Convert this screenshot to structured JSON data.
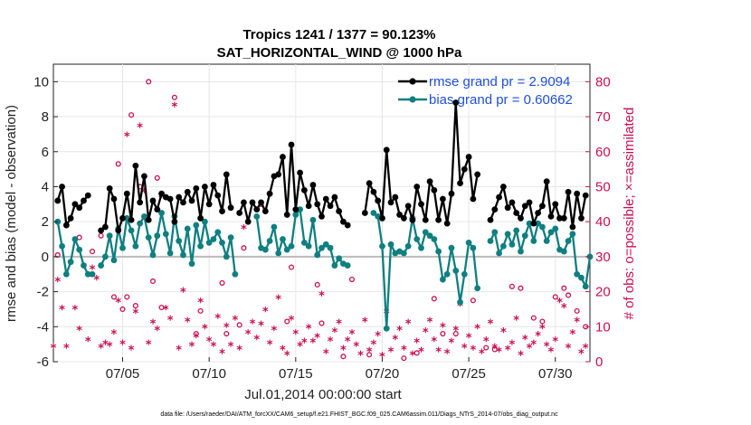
{
  "chart_data": {
    "type": "line",
    "title": "Tropics 1241 / 1377 = 90.123%",
    "subtitle": "SAT_HORIZONTAL_WIND @ 1000 hPa",
    "xlabel": "Jul.01,2014 00:00:00 start",
    "ylabel": "rmse and bias (model - observation)",
    "ylabel_right": "# of obs: o=possible; ×=assimilated",
    "footnote": "data file: /Users/raeder/DAI/ATM_forcXX/CAM6_setup/f.e21.FHIST_BGC.f09_025.CAM6assim.011/Diags_NTrS_2014-07/obs_diag_output.nc",
    "xlim": [
      1,
      32
    ],
    "ylim": [
      -6,
      11
    ],
    "ylim_right": [
      0,
      85
    ],
    "x_ticks": [
      5,
      10,
      15,
      20,
      25,
      30
    ],
    "x_tick_labels": [
      "07/05",
      "07/10",
      "07/15",
      "07/20",
      "07/25",
      "07/30"
    ],
    "y_ticks": [
      -6,
      -4,
      -2,
      0,
      2,
      4,
      6,
      8,
      10
    ],
    "y_tick_labels": [
      "-6",
      "-4",
      "-2",
      "0",
      "2",
      "4",
      "6",
      "8",
      "10"
    ],
    "y_right_ticks": [
      0,
      10,
      20,
      30,
      40,
      50,
      60,
      70,
      80
    ],
    "y_right_tick_labels": [
      "0",
      "10",
      "20",
      "30",
      "40",
      "50",
      "60",
      "70",
      "80"
    ],
    "legend": [
      {
        "label": "rmse grand pr = 2.9094",
        "color": "#000000"
      },
      {
        "label": "bias grand pr = 0.60662",
        "color": "#0f7f80"
      }
    ],
    "colors": {
      "rmse": "#000000",
      "bias": "#0f7f80",
      "counts": "#c8104f",
      "zero_line": "#bbbbbb"
    },
    "series": [
      {
        "name": "rmse",
        "segments": [
          {
            "x": [
              1.25,
              1.5,
              1.75,
              2.0,
              2.25,
              2.5,
              2.75,
              3.0
            ],
            "y": [
              3.2,
              4.0,
              1.8,
              2.2,
              3.0,
              2.8,
              3.2,
              3.5
            ]
          },
          {
            "x": [
              3.75,
              4.0,
              4.25,
              4.5,
              4.75,
              5.0,
              5.25,
              5.5,
              5.75,
              6.0,
              6.25,
              6.5,
              6.75,
              7.0,
              7.25,
              7.5,
              7.75,
              8.0,
              8.25,
              8.5,
              8.75,
              9.0,
              9.25,
              9.5,
              9.75,
              10.0,
              10.25,
              10.5,
              10.75,
              11.0,
              11.25
            ],
            "y": [
              1.5,
              1.7,
              3.9,
              3.3,
              1.5,
              2.2,
              3.6,
              2.1,
              5.2,
              3.1,
              4.6,
              2.1,
              3.2,
              2.7,
              3.6,
              3.4,
              3.3,
              2.0,
              3.4,
              3.1,
              3.7,
              3.2,
              3.9,
              2.2,
              4.0,
              3.0,
              4.1,
              3.5,
              2.6,
              4.7,
              2.8
            ]
          },
          {
            "x": [
              11.75,
              12.0,
              12.25,
              12.5,
              12.75,
              13.0,
              13.25,
              13.5,
              13.75,
              14.0,
              14.25,
              14.5,
              14.75,
              15.0,
              15.25,
              15.5,
              15.75,
              16.0,
              16.25,
              16.5,
              16.75,
              17.0,
              17.25,
              17.5,
              17.75,
              18.0
            ],
            "y": [
              2.5,
              3.1,
              2.0,
              3.1,
              2.7,
              3.1,
              2.6,
              3.6,
              4.6,
              4.7,
              5.7,
              2.4,
              6.4,
              2.7,
              4.8,
              3.8,
              2.9,
              4.1,
              3.0,
              2.3,
              3.3,
              2.9,
              3.4,
              2.6,
              2.0,
              1.8
            ]
          },
          {
            "x": [
              19.0,
              19.25,
              19.5,
              19.75,
              20.0,
              20.25,
              20.5,
              20.75,
              21.0,
              21.25,
              21.5,
              21.75,
              22.0,
              22.25,
              22.5,
              22.75,
              23.0,
              23.25,
              23.5,
              23.75,
              24.0,
              24.25,
              24.5,
              24.75,
              25.0,
              25.25,
              25.5
            ],
            "y": [
              2.5,
              4.2,
              3.7,
              3.2,
              2.2,
              6.1,
              3.1,
              3.4,
              2.4,
              2.2,
              2.9,
              2.1,
              4.0,
              3.0,
              2.1,
              4.3,
              3.8,
              2.1,
              3.3,
              1.9,
              3.6,
              8.8,
              4.2,
              5.0,
              5.7,
              3.3,
              4.7
            ]
          },
          {
            "x": [
              26.25,
              26.5,
              26.75,
              27.0,
              27.25,
              27.5,
              27.75,
              28.0,
              28.25,
              28.5,
              28.75,
              29.0,
              29.25,
              29.5,
              29.75,
              30.0,
              30.25,
              30.5,
              30.75,
              31.0,
              31.25,
              31.5,
              31.75
            ],
            "y": [
              2.1,
              2.7,
              3.4,
              4.0,
              2.8,
              3.1,
              2.5,
              2.2,
              2.9,
              3.1,
              1.9,
              2.5,
              2.9,
              4.3,
              2.3,
              3.0,
              2.2,
              2.2,
              3.7,
              1.7,
              3.6,
              2.2,
              3.5
            ]
          }
        ]
      },
      {
        "name": "bias",
        "segments": [
          {
            "x": [
              1.25,
              1.5,
              1.75,
              2.0,
              2.25,
              2.5,
              2.75,
              3.0,
              3.25
            ],
            "y": [
              2.0,
              0.6,
              -1.0,
              -0.3,
              1.0,
              0.4,
              -0.5,
              -1.0,
              -1.0
            ]
          },
          {
            "x": [
              3.75,
              4.0,
              4.25,
              4.5,
              4.75,
              5.0,
              5.25,
              5.5,
              5.75,
              6.0,
              6.25,
              6.5,
              6.75,
              7.0,
              7.25,
              7.5,
              7.75,
              8.0,
              8.25,
              8.5,
              8.75,
              9.0,
              9.25,
              9.5,
              9.75,
              10.0,
              10.25,
              10.5,
              10.75,
              11.0,
              11.25,
              11.5
            ],
            "y": [
              -0.5,
              0.0,
              1.2,
              -0.2,
              1.6,
              0.5,
              2.2,
              1.5,
              0.6,
              1.9,
              2.3,
              1.1,
              0.1,
              1.2,
              2.5,
              1.3,
              0.2,
              2.3,
              0.9,
              0.1,
              1.6,
              -0.4,
              1.8,
              0.6,
              2.0,
              0.8,
              1.0,
              1.4,
              0.8,
              0.0,
              1.1,
              -1.0
            ]
          },
          {
            "x": [
              12.75,
              13.0,
              13.25,
              13.5,
              13.75,
              14.0,
              14.25,
              14.5,
              14.75,
              15.0,
              15.25,
              15.5,
              15.75,
              16.0,
              16.25,
              16.5,
              16.75,
              17.0,
              17.25,
              17.5,
              17.75,
              18.0
            ],
            "y": [
              2.3,
              0.5,
              0.4,
              0.9,
              1.7,
              0.2,
              1.0,
              0.4,
              0.6,
              2.4,
              2.7,
              0.8,
              0.6,
              2.1,
              0.1,
              0.5,
              0.7,
              0.5,
              -0.5,
              -0.1,
              -0.4,
              -0.5
            ]
          },
          {
            "x": [
              19.5,
              19.75,
              20.0,
              20.25,
              20.5,
              20.75,
              21.0,
              21.25,
              21.5,
              21.75,
              22.0,
              22.25,
              22.5,
              22.75,
              23.0,
              23.25,
              23.5,
              23.75,
              24.0,
              24.25,
              24.5,
              24.75,
              25.0,
              25.25,
              25.5
            ],
            "y": [
              2.5,
              2.3,
              0.6,
              -4.1,
              0.7,
              0.2,
              0.3,
              0.2,
              0.6,
              2.2,
              1.0,
              0.5,
              1.4,
              1.2,
              1.0,
              0.3,
              -1.3,
              -1.0,
              0.5,
              -0.8,
              -2.6,
              -1.0,
              0.8,
              0.5,
              -1.8
            ]
          },
          {
            "x": [
              26.25,
              26.5,
              26.75,
              27.0,
              27.25,
              27.5,
              27.75,
              28.0,
              28.25,
              28.5,
              28.75,
              29.0,
              29.25,
              29.5,
              29.75,
              30.0,
              30.25,
              30.5,
              30.75,
              31.0,
              31.25,
              31.5,
              31.75,
              32.0
            ],
            "y": [
              0.9,
              1.4,
              0.2,
              0.6,
              1.3,
              0.7,
              1.5,
              0.3,
              1.2,
              1.9,
              0.9,
              1.9,
              1.7,
              0.9,
              1.4,
              1.6,
              0.4,
              0.3,
              0.9,
              1.3,
              -1.0,
              -1.2,
              -1.7,
              0.0
            ]
          }
        ]
      }
    ],
    "counts_possible": {
      "x": [
        1.25,
        2.5,
        3.25,
        3.75,
        4.5,
        4.75,
        5.0,
        5.25,
        5.5,
        5.75,
        6.0,
        6.25,
        6.5,
        6.75,
        7.0,
        7.25,
        8.0,
        9.25,
        9.5,
        10.75,
        11.0,
        11.75,
        12.0,
        13.0,
        14.5,
        14.75,
        16.25,
        16.5,
        17.75,
        18.25,
        19.25,
        20.5,
        21.25,
        22.0,
        23.0,
        23.5,
        24.25,
        25.25,
        26.0,
        26.5,
        27.5,
        28.0,
        28.75,
        29.25,
        30.0,
        30.5,
        30.75,
        31.25,
        31.75
      ],
      "y": [
        30.5,
        35.5,
        31.5,
        36.0,
        18.5,
        56.5,
        15.0,
        18.5,
        70.5,
        16.0,
        50.0,
        53.0,
        80.0,
        23.0,
        52.5,
        15.5,
        75.5,
        8.0,
        14.5,
        22.5,
        8.0,
        10.5,
        32.5,
        45.0,
        11.5,
        27.0,
        22.0,
        11.0,
        1.5,
        23.5,
        2.0,
        45.5,
        1.0,
        2.5,
        18.0,
        8.0,
        8.0,
        17.5,
        4.0,
        3.5,
        21.5,
        21.0,
        12.5,
        11.5,
        18.5,
        21.0,
        19.0,
        14.5,
        10.0
      ]
    },
    "counts_assimilated": {
      "x": [
        1.0,
        1.25,
        1.5,
        1.75,
        2.25,
        2.5,
        3.0,
        3.25,
        3.5,
        3.75,
        4.0,
        4.25,
        4.5,
        4.75,
        5.0,
        5.25,
        5.5,
        5.75,
        6.0,
        6.25,
        6.5,
        6.75,
        7.0,
        7.25,
        7.5,
        7.75,
        8.0,
        8.25,
        8.5,
        8.75,
        9.0,
        9.25,
        9.5,
        9.75,
        10.0,
        10.25,
        10.5,
        10.75,
        11.0,
        11.25,
        11.5,
        11.75,
        12.0,
        12.25,
        12.5,
        12.75,
        13.0,
        13.25,
        13.5,
        13.75,
        14.0,
        14.25,
        14.5,
        14.75,
        15.0,
        15.25,
        15.5,
        15.75,
        16.0,
        16.25,
        16.5,
        16.75,
        17.0,
        17.25,
        17.5,
        17.75,
        18.0,
        18.25,
        18.5,
        18.75,
        19.0,
        19.25,
        19.5,
        19.75,
        20.0,
        20.25,
        20.5,
        20.75,
        21.0,
        21.25,
        21.5,
        21.75,
        22.0,
        22.25,
        22.5,
        22.75,
        23.0,
        23.25,
        23.5,
        23.75,
        24.0,
        24.25,
        24.5,
        24.75,
        25.0,
        25.25,
        25.5,
        25.75,
        26.0,
        26.25,
        26.5,
        26.75,
        27.0,
        27.25,
        27.5,
        27.75,
        28.0,
        28.25,
        28.5,
        28.75,
        29.0,
        29.25,
        29.5,
        29.75,
        30.0,
        30.25,
        30.5,
        30.75,
        31.0,
        31.25,
        31.5,
        31.75
      ],
      "y": [
        4.0,
        23.0,
        15.0,
        4.0,
        15.0,
        9.0,
        6.0,
        26.5,
        23.5,
        4.0,
        5.0,
        4.5,
        8.0,
        17.0,
        5.0,
        64.5,
        3.5,
        14.0,
        67.0,
        48.5,
        5.0,
        11.0,
        9.0,
        47.0,
        15.0,
        12.0,
        73.0,
        3.5,
        20.0,
        11.5,
        4.5,
        7.0,
        17.0,
        9.5,
        6.0,
        4.5,
        12.5,
        2.5,
        10.0,
        4.5,
        12.0,
        3.5,
        38.0,
        8.0,
        11.0,
        6.5,
        10.5,
        14.5,
        5.0,
        9.0,
        18.0,
        3.5,
        2.0,
        12.0,
        8.0,
        4.5,
        5.5,
        9.5,
        5.5,
        7.0,
        19.0,
        2.5,
        6.0,
        8.5,
        11.0,
        3.5,
        6.0,
        8.0,
        4.5,
        2.0,
        11.5,
        3.0,
        5.0,
        7.5,
        1.5,
        14.0,
        3.0,
        6.5,
        9.0,
        3.5,
        11.0,
        2.0,
        5.5,
        3.0,
        8.5,
        11.5,
        6.0,
        3.0,
        10.0,
        2.5,
        5.5,
        9.0,
        16.0,
        4.0,
        7.0,
        3.5,
        9.5,
        2.5,
        6.0,
        11.0,
        4.0,
        3.0,
        8.5,
        3.5,
        5.0,
        12.0,
        2.0,
        6.5,
        4.0,
        5.0,
        7.5,
        9.5,
        4.5,
        3.0,
        6.0,
        17.0,
        15.5,
        4.0,
        8.0,
        11.5,
        2.5,
        4.0
      ]
    }
  }
}
